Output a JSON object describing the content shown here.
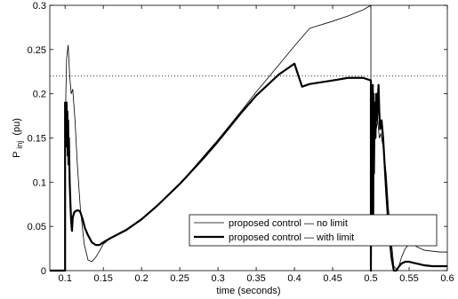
{
  "chart_data": {
    "type": "line",
    "xlabel": "time (seconds)",
    "ylabel": "P",
    "ylabel_sub": "inj",
    "ylabel_unit": "(pu)",
    "xlim": [
      0.08,
      0.6
    ],
    "ylim": [
      0,
      0.3
    ],
    "xticks": [
      0.1,
      0.15,
      0.2,
      0.25,
      0.3,
      0.35,
      0.4,
      0.45,
      0.5,
      0.55,
      0.6
    ],
    "xtick_labels": [
      "0.1",
      "0.15",
      "0.2",
      "0.25",
      "0.3",
      "0.35",
      "0.4",
      "0.45",
      "0.5",
      "0.55",
      "0.6"
    ],
    "yticks": [
      0,
      0.05,
      0.1,
      0.15,
      0.2,
      0.25,
      0.3
    ],
    "ytick_labels": [
      "0",
      "0.05",
      "0.1",
      "0.15",
      "0.2",
      "0.25",
      "0.3"
    ],
    "grid": false,
    "legend_position": "bottom-center",
    "reference_line": {
      "y": 0.22,
      "style": "dotted"
    },
    "series": [
      {
        "name": "proposed control — no limit",
        "style": "thin",
        "color": "#000000",
        "x": [
          0.08,
          0.1,
          0.1,
          0.101,
          0.102,
          0.104,
          0.106,
          0.108,
          0.11,
          0.113,
          0.116,
          0.12,
          0.125,
          0.13,
          0.135,
          0.14,
          0.145,
          0.15,
          0.16,
          0.18,
          0.2,
          0.22,
          0.25,
          0.28,
          0.3,
          0.33,
          0.35,
          0.38,
          0.4,
          0.42,
          0.45,
          0.47,
          0.49,
          0.5,
          0.5,
          0.501,
          0.503,
          0.505,
          0.507,
          0.509,
          0.511,
          0.513,
          0.516,
          0.52,
          0.523,
          0.526,
          0.53,
          0.535,
          0.54,
          0.545,
          0.55,
          0.555,
          0.56,
          0.57,
          0.58,
          0.59,
          0.6
        ],
        "y": [
          0,
          0,
          0.12,
          0.2,
          0.24,
          0.255,
          0.22,
          0.2,
          0.205,
          0.17,
          0.12,
          0.07,
          0.03,
          0.012,
          0.01,
          0.015,
          0.022,
          0.03,
          0.037,
          0.045,
          0.058,
          0.073,
          0.098,
          0.128,
          0.148,
          0.18,
          0.202,
          0.233,
          0.254,
          0.274,
          0.282,
          0.288,
          0.295,
          0.3,
          0.0,
          0.19,
          0.17,
          0.18,
          0.16,
          0.17,
          0.15,
          0.155,
          0.14,
          0.11,
          0.07,
          0.04,
          0.005,
          0.0,
          0.015,
          0.025,
          0.03,
          0.03,
          0.027,
          0.023,
          0.022,
          0.021,
          0.021
        ]
      },
      {
        "name": "proposed control — with limit",
        "style": "thick",
        "color": "#000000",
        "x": [
          0.08,
          0.1,
          0.1,
          0.1005,
          0.101,
          0.1015,
          0.102,
          0.1025,
          0.103,
          0.1035,
          0.104,
          0.1045,
          0.105,
          0.106,
          0.107,
          0.108,
          0.109,
          0.11,
          0.112,
          0.115,
          0.118,
          0.12,
          0.123,
          0.126,
          0.13,
          0.135,
          0.14,
          0.145,
          0.15,
          0.16,
          0.18,
          0.2,
          0.22,
          0.25,
          0.28,
          0.3,
          0.33,
          0.35,
          0.38,
          0.4,
          0.41,
          0.42,
          0.45,
          0.47,
          0.49,
          0.5,
          0.5,
          0.5005,
          0.501,
          0.5015,
          0.502,
          0.5025,
          0.503,
          0.5035,
          0.504,
          0.505,
          0.506,
          0.507,
          0.508,
          0.509,
          0.51,
          0.511,
          0.512,
          0.514,
          0.516,
          0.518,
          0.52,
          0.523,
          0.527,
          0.53,
          0.533,
          0.537,
          0.54,
          0.545,
          0.55,
          0.555,
          0.56,
          0.57,
          0.58,
          0.59,
          0.6
        ],
        "y": [
          0,
          0,
          0.19,
          0.16,
          0.18,
          0.15,
          0.19,
          0.14,
          0.18,
          0.13,
          0.17,
          0.12,
          0.15,
          0.1,
          0.075,
          0.055,
          0.045,
          0.06,
          0.066,
          0.068,
          0.068,
          0.066,
          0.058,
          0.048,
          0.04,
          0.032,
          0.029,
          0.029,
          0.032,
          0.037,
          0.046,
          0.058,
          0.073,
          0.098,
          0.126,
          0.146,
          0.178,
          0.198,
          0.222,
          0.234,
          0.208,
          0.211,
          0.215,
          0.218,
          0.218,
          0.215,
          0.0,
          0.2,
          0.08,
          0.19,
          0.06,
          0.21,
          0.04,
          0.2,
          0.11,
          0.19,
          0.15,
          0.2,
          0.17,
          0.19,
          0.21,
          0.18,
          0.16,
          0.17,
          0.15,
          0.12,
          0.09,
          0.05,
          0.015,
          0.0,
          0.0,
          0.005,
          0.008,
          0.01,
          0.01,
          0.009,
          0.008,
          0.006,
          0.005,
          0.005,
          0.005
        ]
      }
    ]
  }
}
